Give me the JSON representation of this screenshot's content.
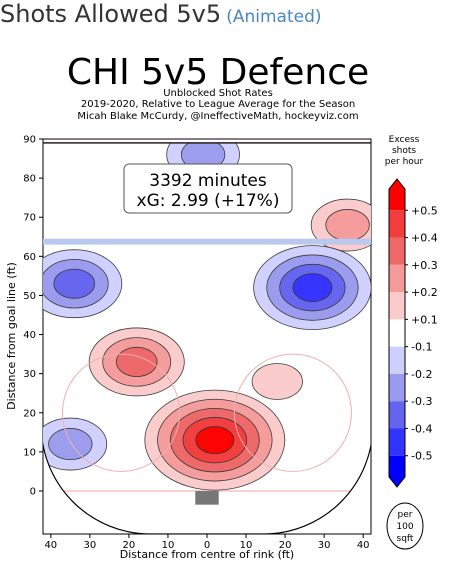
{
  "page": {
    "heading": "Shots Allowed 5v5",
    "heading_link": "(Animated)"
  },
  "chart_data": {
    "type": "heatmap",
    "title": "CHI 5v5 Defence",
    "subtitle_lines": [
      "Unblocked Shot Rates",
      "2019-2020, Relative to League Average for the Season",
      "Micah Blake McCurdy, @IneffectiveMath, hockeyviz.com"
    ],
    "annotation_lines": [
      "3392 minutes",
      "xG: 2.99 (+17%)"
    ],
    "xlabel": "Distance from centre of rink (ft)",
    "ylabel": "Distance from goal line (ft)",
    "xlim": [
      -42,
      42
    ],
    "ylim": [
      -11,
      90
    ],
    "x_ticks": [
      40,
      30,
      20,
      10,
      0,
      10,
      20,
      30,
      40
    ],
    "x_tick_values": [
      -40,
      -30,
      -20,
      -10,
      0,
      10,
      20,
      30,
      40
    ],
    "y_ticks": [
      0,
      10,
      20,
      30,
      40,
      50,
      60,
      70,
      80,
      90
    ],
    "colorbar": {
      "title_lines": [
        "Excess",
        "shots",
        "per hour"
      ],
      "labels": [
        "+0.5",
        "+0.4",
        "+0.3",
        "+0.2",
        "+0.1",
        "-0.1",
        "-0.2",
        "-0.3",
        "-0.4",
        "-0.5"
      ],
      "levels": [
        0.5,
        0.4,
        0.3,
        0.2,
        0.1,
        -0.1,
        -0.2,
        -0.3,
        -0.4,
        -0.5
      ],
      "colors": [
        "#ff0000",
        "#f33d3d",
        "#ee6868",
        "#f59a9a",
        "#fbcaca",
        "#ffffff",
        "#cfcfff",
        "#9a9aee",
        "#6464ee",
        "#3333ff",
        "#0000ff"
      ]
    },
    "unit_badge_lines": [
      "per",
      "100",
      "sqft"
    ],
    "hot_regions": [
      {
        "x": 2,
        "y": 13,
        "level": 0.5
      },
      {
        "x": -18,
        "y": 33,
        "level": 0.3
      },
      {
        "x": 18,
        "y": 28,
        "level": 0.1
      },
      {
        "x": 36,
        "y": 68,
        "level": 0.2
      },
      {
        "x": -1,
        "y": 86,
        "level": -0.2
      },
      {
        "x": -34,
        "y": 53,
        "level": -0.3
      },
      {
        "x": 27,
        "y": 52,
        "level": -0.4
      },
      {
        "x": -35,
        "y": 12,
        "level": -0.2
      }
    ]
  }
}
